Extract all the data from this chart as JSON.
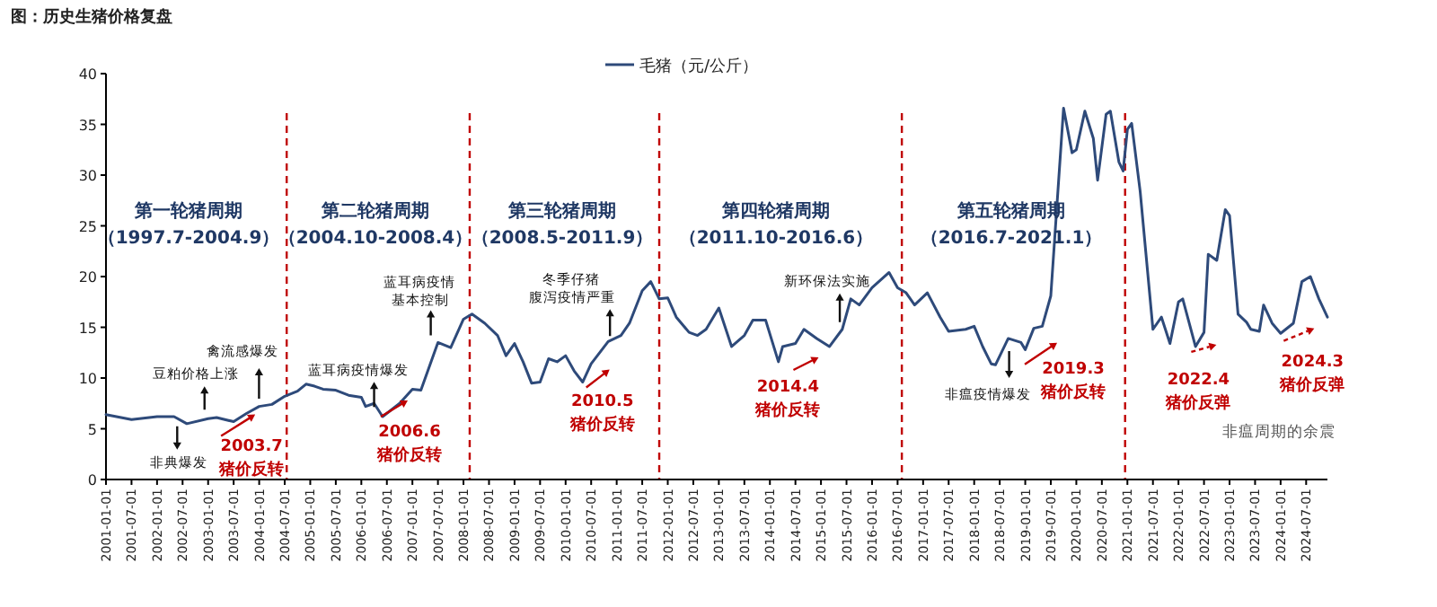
{
  "chart_data": {
    "type": "line",
    "title": "图：历史生猪价格复盘",
    "legend": "top",
    "xlim": [
      "2001-01-01",
      "2024-12-01"
    ],
    "ylim": [
      0,
      40
    ],
    "yticks": [
      0,
      5,
      10,
      15,
      20,
      25,
      30,
      35,
      40
    ],
    "grid": false,
    "xticks": [
      "2001-01-01",
      "2001-07-01",
      "2002-01-01",
      "2002-07-01",
      "2003-01-01",
      "2003-07-01",
      "2004-01-01",
      "2004-07-01",
      "2005-01-01",
      "2005-07-01",
      "2006-01-01",
      "2006-07-01",
      "2007-01-01",
      "2007-07-01",
      "2008-01-01",
      "2008-07-01",
      "2009-01-01",
      "2009-07-01",
      "2010-01-01",
      "2010-07-01",
      "2011-01-01",
      "2011-07-01",
      "2012-01-01",
      "2012-07-01",
      "2013-01-01",
      "2013-07-01",
      "2014-01-01",
      "2014-07-01",
      "2015-01-01",
      "2015-07-01",
      "2016-01-01",
      "2016-07-01",
      "2017-01-01",
      "2017-07-01",
      "2018-01-01",
      "2018-07-01",
      "2019-01-01",
      "2019-07-01",
      "2020-01-01",
      "2020-07-01",
      "2021-01-01",
      "2021-07-01",
      "2022-01-01",
      "2022-07-01",
      "2023-01-01",
      "2023-07-01",
      "2024-01-01",
      "2024-07-01"
    ],
    "x": [
      "2001-01",
      "2001-07",
      "2002-01",
      "2002-05",
      "2002-08",
      "2003-01",
      "2003-03",
      "2003-07",
      "2003-10",
      "2004-01",
      "2004-04",
      "2004-07",
      "2004-10",
      "2004-12",
      "2005-02",
      "2005-04",
      "2005-07",
      "2005-10",
      "2006-01",
      "2006-02",
      "2006-04",
      "2006-06",
      "2006-10",
      "2007-01",
      "2007-03",
      "2007-07",
      "2007-10",
      "2008-01",
      "2008-03",
      "2008-06",
      "2008-09",
      "2008-11",
      "2009-01",
      "2009-03",
      "2009-05",
      "2009-07",
      "2009-09",
      "2009-11",
      "2010-01",
      "2010-03",
      "2010-05",
      "2010-07",
      "2010-11",
      "2011-02",
      "2011-04",
      "2011-07",
      "2011-09",
      "2011-11",
      "2012-01",
      "2012-03",
      "2012-06",
      "2012-08",
      "2012-10",
      "2013-01",
      "2013-04",
      "2013-07",
      "2013-09",
      "2013-12",
      "2014-03",
      "2014-04",
      "2014-07",
      "2014-09",
      "2014-12",
      "2015-03",
      "2015-06",
      "2015-08",
      "2015-10",
      "2016-01",
      "2016-05",
      "2016-07",
      "2016-09",
      "2016-11",
      "2017-02",
      "2017-05",
      "2017-07",
      "2017-11",
      "2018-01",
      "2018-03",
      "2018-05",
      "2018-06",
      "2018-09",
      "2018-12",
      "2019-01",
      "2019-03",
      "2019-05",
      "2019-07",
      "2019-10",
      "2019-12",
      "2020-01",
      "2020-03",
      "2020-05",
      "2020-06",
      "2020-08",
      "2020-09",
      "2020-11",
      "2020-12",
      "2021-01",
      "2021-02",
      "2021-04",
      "2021-07",
      "2021-09",
      "2021-11",
      "2022-01",
      "2022-02",
      "2022-05",
      "2022-07",
      "2022-08",
      "2022-10",
      "2022-12",
      "2023-01",
      "2023-03",
      "2023-05",
      "2023-06",
      "2023-08",
      "2023-09",
      "2023-11",
      "2024-01",
      "2024-04",
      "2024-06",
      "2024-08",
      "2024-10",
      "2024-12"
    ],
    "series": [
      {
        "name": "毛猪（元/公斤）",
        "color": "#2e4a7a",
        "values": [
          6.4,
          5.9,
          6.2,
          6.2,
          5.5,
          6.0,
          6.1,
          5.7,
          6.5,
          7.2,
          7.4,
          8.2,
          8.7,
          9.4,
          9.2,
          8.9,
          8.8,
          8.3,
          8.1,
          7.2,
          7.5,
          6.2,
          7.5,
          8.9,
          8.8,
          13.5,
          13.0,
          15.8,
          16.3,
          15.4,
          14.2,
          12.2,
          13.4,
          11.6,
          9.5,
          9.6,
          11.9,
          11.6,
          12.2,
          10.7,
          9.6,
          11.4,
          13.6,
          14.2,
          15.4,
          18.6,
          19.5,
          17.8,
          17.9,
          16.0,
          14.5,
          14.2,
          14.8,
          16.9,
          13.1,
          14.2,
          15.7,
          15.7,
          11.6,
          13.1,
          13.4,
          14.8,
          13.9,
          13.1,
          14.8,
          17.8,
          17.2,
          18.9,
          20.4,
          18.9,
          18.4,
          17.2,
          18.4,
          16.0,
          14.6,
          14.8,
          15.1,
          13.1,
          11.4,
          11.3,
          13.9,
          13.5,
          12.8,
          14.9,
          15.1,
          18.1,
          36.6,
          32.2,
          32.5,
          36.3,
          33.6,
          29.5,
          36.0,
          36.3,
          31.3,
          30.4,
          34.5,
          35.1,
          28.4,
          14.8,
          16.0,
          13.4,
          17.5,
          17.8,
          13.1,
          14.5,
          22.2,
          21.6,
          26.6,
          26.0,
          16.3,
          15.5,
          14.8,
          14.6,
          17.2,
          15.4,
          14.4,
          15.4,
          19.5,
          20.0,
          17.8,
          16.0
        ]
      }
    ],
    "ref_lines": [
      {
        "axis": "x",
        "value": "2004-07-15",
        "color": "#c00000",
        "line_style": "dashed"
      },
      {
        "axis": "x",
        "value": "2008-02-15",
        "color": "#c00000",
        "line_style": "dashed"
      },
      {
        "axis": "x",
        "value": "2011-11-01",
        "color": "#c00000",
        "line_style": "dashed"
      },
      {
        "axis": "x",
        "value": "2016-08-01",
        "color": "#c00000",
        "line_style": "dashed"
      },
      {
        "axis": "x",
        "value": "2020-12-15",
        "color": "#c00000",
        "line_style": "dashed"
      }
    ],
    "annotations": [
      "第一轮猪周期",
      "（1997.7-2004.9）",
      "第二轮猪周期",
      "（2004.10-2008.4）",
      "第三轮猪周期",
      "（2008.5-2011.9）",
      "第四轮猪周期",
      "（2011.10-2016.6）",
      "第五轮猪周期",
      "（2016.7-2021.1）",
      {
        "text": "豆粕价格上涨",
        "x": "2003-01",
        "y": 6.0
      },
      "禽流感爆发",
      {
        "text": "非典爆发",
        "x": "2002-07",
        "y": 5.6
      },
      {
        "text": "2003.7\n猪价反转",
        "x": "2003-07",
        "y": 5.7
      },
      {
        "text": "蓝耳病疫情爆发",
        "x": "2006-04",
        "y": 7.5
      },
      {
        "text": "2006.6\n猪价反转",
        "x": "2006-06",
        "y": 6.2
      },
      "蓝耳病疫情",
      {
        "text": "基本控制",
        "x": "2007-07",
        "y": 13.5
      },
      "冬季仔猪",
      {
        "text": "腹泻疫情严重",
        "x": "2010-11",
        "y": 13.6
      },
      {
        "text": "2010.5\n猪价反转",
        "x": "2010-05",
        "y": 9.6
      },
      {
        "text": "新环保法实施",
        "x": "2015-05",
        "y": 14.8
      },
      {
        "text": "2014.4\n猪价反转",
        "x": "2014-04",
        "y": 13.1
      },
      "非瘟疫情爆发",
      {
        "text": "2019.3\n猪价反转",
        "x": "2019-03",
        "y": 14.9
      },
      {
        "text": "2022.4\n猪价反弹",
        "x": "2022-04",
        "y": 13.1
      },
      {
        "text": "2024.3\n猪价反弹",
        "x": "2024-03",
        "y": 14.9
      },
      "非瘟周期的余震"
    ]
  }
}
